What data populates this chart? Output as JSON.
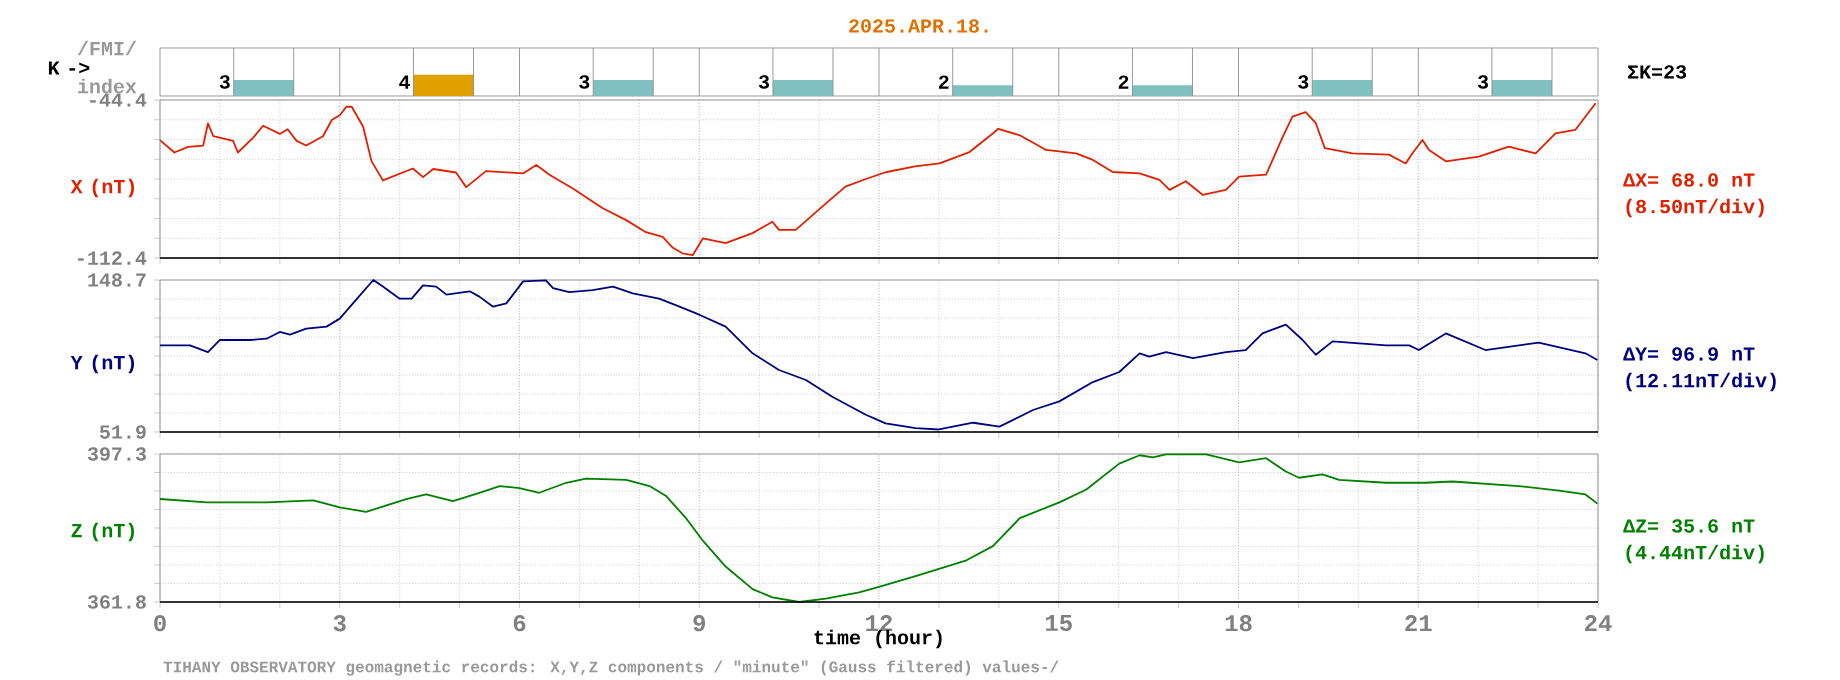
{
  "chart_data": [
    {
      "type": "bar",
      "title": "2025.APR.18.",
      "ylabel": "K ->",
      "categories": [
        null,
        null,
        null,
        null,
        null,
        null,
        null,
        null
      ],
      "values": [
        3,
        4,
        3,
        3,
        2,
        2,
        3,
        3
      ],
      "colors": [
        "#80c0c0",
        "#e0a000",
        "#80c0c0",
        "#80c0c0",
        "#80c0c0",
        "#80c0c0",
        "#80c0c0",
        "#80c0c0"
      ],
      "data_labels": true,
      "tick_labels": false,
      "annotations": [
        "/FMI/",
        "index",
        "ΣK=23"
      ]
    },
    {
      "type": "line",
      "ylabel": "X (nT)",
      "color": "#e02000",
      "xlim": [
        0,
        24
      ],
      "ylim": [
        -112.4,
        -44.4
      ],
      "grid": true,
      "tick_labels": "y",
      "xticks": [
        0,
        {
          "value": 1,
          "label": null
        },
        {
          "value": 2,
          "label": null
        },
        3,
        {
          "value": 4,
          "label": null
        },
        {
          "value": 5,
          "label": null
        },
        6,
        {
          "value": 7,
          "label": null
        },
        {
          "value": 8,
          "label": null
        },
        9,
        {
          "value": 10,
          "label": null
        },
        {
          "value": 11,
          "label": null
        },
        12,
        {
          "value": 13,
          "label": null
        },
        {
          "value": 14,
          "label": null
        },
        15,
        {
          "value": 16,
          "label": null
        },
        {
          "value": 17,
          "label": null
        },
        18,
        {
          "value": 19,
          "label": null
        },
        {
          "value": 20,
          "label": null
        },
        21,
        {
          "value": 22,
          "label": null
        },
        {
          "value": 23,
          "label": null
        },
        24
      ],
      "yticks": [
        -112.4,
        {
          "value": -103.9,
          "label": null
        },
        {
          "value": -95.4,
          "label": null
        },
        {
          "value": -86.9,
          "label": null
        },
        {
          "value": -78.4,
          "label": null
        },
        {
          "value": -69.9,
          "label": null
        },
        {
          "value": -61.4,
          "label": null
        },
        {
          "value": -52.9,
          "label": null
        },
        -44.4
      ],
      "x": [
        0,
        0.24,
        0.47,
        0.72,
        0.8,
        0.89,
        1.22,
        1.3,
        1.56,
        1.72,
        2.0,
        2.13,
        2.28,
        2.44,
        2.72,
        2.87,
        3.0,
        3.11,
        3.2,
        3.39,
        3.53,
        3.72,
        4.22,
        4.39,
        4.56,
        4.94,
        5.11,
        5.44,
        6.06,
        6.28,
        6.5,
        6.89,
        7.39,
        7.78,
        8.11,
        8.39,
        8.56,
        8.72,
        8.89,
        9.06,
        9.44,
        9.89,
        10.22,
        10.33,
        10.61,
        11.11,
        11.44,
        11.78,
        12.11,
        12.6,
        13.01,
        13.51,
        13.9,
        13.99,
        14.35,
        14.79,
        15.29,
        15.57,
        15.9,
        16.35,
        16.68,
        16.85,
        17.12,
        17.4,
        17.79,
        18.01,
        18.46,
        18.74,
        18.9,
        19.12,
        19.29,
        19.44,
        19.9,
        20.51,
        20.79,
        20.9,
        21.07,
        21.18,
        21.46,
        22.01,
        22.51,
        22.96,
        23.29,
        23.62,
        23.96
      ],
      "values": [
        -61.7,
        -67,
        -64.6,
        -64,
        -54.5,
        -60,
        -62,
        -67,
        -60.5,
        -55.5,
        -59,
        -57,
        -62,
        -64,
        -60,
        -52.9,
        -51,
        -47.3,
        -47.3,
        -55.9,
        -70.7,
        -79.0,
        -73.9,
        -77.6,
        -74.1,
        -75.6,
        -81.9,
        -75,
        -76.0,
        -72.4,
        -76.6,
        -82.5,
        -91.0,
        -96.1,
        -101.3,
        -103.3,
        -108,
        -110.4,
        -111.2,
        -104,
        -106,
        -101.7,
        -96.8,
        -100.3,
        -100.3,
        -89,
        -81.7,
        -78.4,
        -75.5,
        -73,
        -71.7,
        -66.8,
        -58.8,
        -56.8,
        -59.6,
        -65.9,
        -67.4,
        -70.2,
        -75.4,
        -76,
        -78.8,
        -83.1,
        -79.4,
        -85.2,
        -83.1,
        -77.4,
        -76.5,
        -60.2,
        -51.6,
        -49.6,
        -54.4,
        -65.1,
        -67.4,
        -67.9,
        -71.7,
        -67.4,
        -61.6,
        -65.9,
        -70.8,
        -68.8,
        -64.5,
        -67.4,
        -58.8,
        -57.3,
        -45.8
      ],
      "annotations": [
        "ΔX= 68.0 nT",
        "(8.50nT/div)"
      ]
    },
    {
      "type": "line",
      "ylabel": "Y (nT)",
      "color": "#000080",
      "xlim": [
        0,
        24
      ],
      "ylim": [
        51.9,
        148.7
      ],
      "grid": true,
      "tick_labels": "y",
      "xticks": [
        0,
        {
          "value": 1,
          "label": null
        },
        {
          "value": 2,
          "label": null
        },
        3,
        {
          "value": 4,
          "label": null
        },
        {
          "value": 5,
          "label": null
        },
        6,
        {
          "value": 7,
          "label": null
        },
        {
          "value": 8,
          "label": null
        },
        9,
        {
          "value": 10,
          "label": null
        },
        {
          "value": 11,
          "label": null
        },
        12,
        {
          "value": 13,
          "label": null
        },
        {
          "value": 14,
          "label": null
        },
        15,
        {
          "value": 16,
          "label": null
        },
        {
          "value": 17,
          "label": null
        },
        18,
        {
          "value": 19,
          "label": null
        },
        {
          "value": 20,
          "label": null
        },
        21,
        {
          "value": 22,
          "label": null
        },
        {
          "value": 23,
          "label": null
        },
        24
      ],
      "yticks": [
        51.9,
        {
          "value": 64.0,
          "label": null
        },
        {
          "value": 76.1,
          "label": null
        },
        {
          "value": 88.2,
          "label": null
        },
        {
          "value": 100.3,
          "label": null
        },
        {
          "value": 112.4,
          "label": null
        },
        {
          "value": 124.5,
          "label": null
        },
        {
          "value": 136.6,
          "label": null
        },
        148.7
      ],
      "x": [
        0,
        0.5,
        0.8,
        1.0,
        1.5,
        1.78,
        2.0,
        2.17,
        2.44,
        2.78,
        3.0,
        3.22,
        3.56,
        3.72,
        4.0,
        4.2,
        4.39,
        4.61,
        4.78,
        5.17,
        5.33,
        5.56,
        5.78,
        6.06,
        6.44,
        6.56,
        6.83,
        7.22,
        7.56,
        7.89,
        8.33,
        8.67,
        9.0,
        9.44,
        9.89,
        10.33,
        10.78,
        11.22,
        11.78,
        12.11,
        12.61,
        13.0,
        13.57,
        14.01,
        14.57,
        15.01,
        15.57,
        16.01,
        16.35,
        16.51,
        16.79,
        17.24,
        17.79,
        18.12,
        18.4,
        18.79,
        19.07,
        19.29,
        19.57,
        20.46,
        20.85,
        21.01,
        21.46,
        22.12,
        23.01,
        23.79,
        23.99
      ],
      "values": [
        107.1,
        107.1,
        102.8,
        110.5,
        110.5,
        111.3,
        115.6,
        113.9,
        117.7,
        119,
        124.1,
        133.8,
        148.7,
        144.5,
        136.8,
        136.8,
        145.3,
        144.5,
        139.4,
        141.5,
        138.1,
        131.7,
        133.8,
        147.8,
        148.5,
        143.6,
        141,
        142.3,
        144.5,
        140.2,
        136.8,
        131.7,
        126.6,
        119,
        102,
        91.4,
        85,
        74.4,
        62.9,
        57.4,
        54.4,
        53.5,
        57.8,
        55.3,
        65.9,
        71.4,
        83.7,
        90.1,
        102,
        99.9,
        102.8,
        99,
        102.8,
        104.1,
        114.7,
        120.3,
        110.5,
        101.1,
        109.6,
        107.1,
        107.1,
        104.1,
        114.7,
        104.1,
        108.8,
        102,
        97.7
      ],
      "annotations": [
        "ΔY= 96.9 nT",
        "(12.11nT/div)"
      ]
    },
    {
      "type": "line",
      "ylabel": "Z (nT)",
      "xlabel": "time (hour)",
      "color": "#008000",
      "xlim": [
        0,
        24
      ],
      "ylim": [
        361.8,
        397.3
      ],
      "grid": true,
      "xticks": [
        0,
        {
          "value": 1,
          "label": null
        },
        {
          "value": 2,
          "label": null
        },
        3,
        {
          "value": 4,
          "label": null
        },
        {
          "value": 5,
          "label": null
        },
        6,
        {
          "value": 7,
          "label": null
        },
        {
          "value": 8,
          "label": null
        },
        9,
        {
          "value": 10,
          "label": null
        },
        {
          "value": 11,
          "label": null
        },
        12,
        {
          "value": 13,
          "label": null
        },
        {
          "value": 14,
          "label": null
        },
        15,
        {
          "value": 16,
          "label": null
        },
        {
          "value": 17,
          "label": null
        },
        18,
        {
          "value": 19,
          "label": null
        },
        {
          "value": 20,
          "label": null
        },
        21,
        {
          "value": 22,
          "label": null
        },
        {
          "value": 23,
          "label": null
        },
        24
      ],
      "yticks": [
        361.8,
        {
          "value": 366.24,
          "label": null
        },
        {
          "value": 370.68,
          "label": null
        },
        {
          "value": 375.11,
          "label": null
        },
        {
          "value": 379.55,
          "label": null
        },
        {
          "value": 383.99,
          "label": null
        },
        {
          "value": 388.43,
          "label": null
        },
        {
          "value": 392.86,
          "label": null
        },
        397.3
      ],
      "x": [
        0,
        0.78,
        1.78,
        2.56,
        3.0,
        3.44,
        3.78,
        4.11,
        4.44,
        4.89,
        5.33,
        5.67,
        6.0,
        6.33,
        6.78,
        7.11,
        7.78,
        8.17,
        8.44,
        8.78,
        9.06,
        9.44,
        9.89,
        10.22,
        10.67,
        11.11,
        11.67,
        12.0,
        12.61,
        13.46,
        13.9,
        14.35,
        15.01,
        15.46,
        16.01,
        16.35,
        16.57,
        16.79,
        17.46,
        18.01,
        18.46,
        18.79,
        19.01,
        19.4,
        19.68,
        20.46,
        21.12,
        21.57,
        22.68,
        23.35,
        23.79,
        23.99
      ],
      "values": [
        386.5,
        385.7,
        385.7,
        386.2,
        384.5,
        383.4,
        385,
        386.5,
        387.6,
        386,
        388,
        389.6,
        389.1,
        388,
        390.4,
        391.4,
        391.1,
        389.6,
        387.3,
        381.9,
        376.5,
        370.3,
        364.9,
        362.9,
        361.8,
        362.6,
        364.1,
        365.4,
        368,
        371.8,
        375.2,
        381.9,
        385.7,
        388.8,
        395,
        397,
        396.5,
        397.2,
        397.2,
        395.3,
        396.3,
        393.1,
        391.6,
        392.4,
        391.1,
        390.4,
        390.4,
        390.7,
        389.6,
        388.5,
        387.6,
        385.4
      ],
      "annotations": [
        "ΔZ= 35.6 nT",
        "(4.44nT/div)",
        "TIHANY OBSERVATORY   geomagnetic records:  X,Y,Z  components   / \"minute\" (Gauss filtered) values-/"
      ]
    }
  ]
}
